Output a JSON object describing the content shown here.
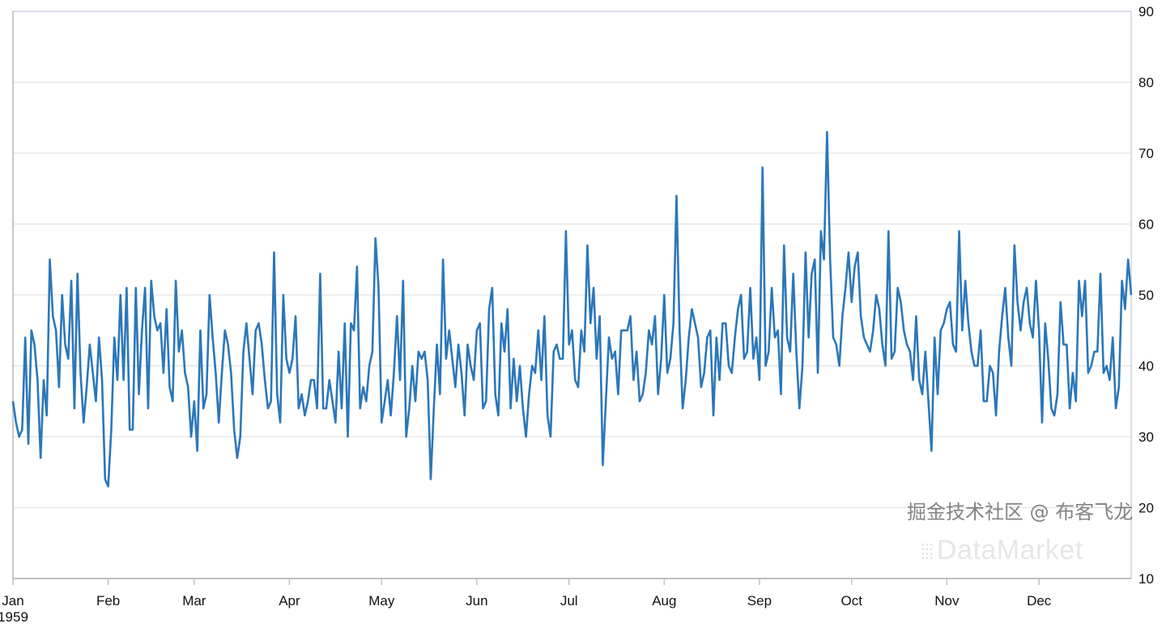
{
  "chart_data": {
    "type": "line",
    "title": "",
    "xlabel": "",
    "ylabel": "",
    "x_start": "1959-01-01",
    "x_end": "1959-12-31",
    "x_ticks": [
      {
        "date": "1959-01-01",
        "label": "Jan",
        "sublabel": "1959"
      },
      {
        "date": "1959-02-01",
        "label": "Feb"
      },
      {
        "date": "1959-03-01",
        "label": "Mar"
      },
      {
        "date": "1959-04-01",
        "label": "Apr"
      },
      {
        "date": "1959-05-01",
        "label": "May"
      },
      {
        "date": "1959-06-01",
        "label": "Jun"
      },
      {
        "date": "1959-07-01",
        "label": "Jul"
      },
      {
        "date": "1959-08-01",
        "label": "Aug"
      },
      {
        "date": "1959-09-01",
        "label": "Sep"
      },
      {
        "date": "1959-10-01",
        "label": "Oct"
      },
      {
        "date": "1959-11-01",
        "label": "Nov"
      },
      {
        "date": "1959-12-01",
        "label": "Dec"
      }
    ],
    "ylim": [
      10,
      90
    ],
    "y_ticks": [
      "10",
      "20",
      "30",
      "40",
      "50",
      "60",
      "70",
      "80",
      "90"
    ],
    "y_axis_side": "right",
    "grid": true,
    "line_color": "#2b77b9",
    "series": [
      {
        "frequency": "daily",
        "values": [
          35,
          32,
          30,
          31,
          44,
          29,
          45,
          43,
          38,
          27,
          38,
          33,
          55,
          47,
          45,
          37,
          50,
          43,
          41,
          52,
          34,
          53,
          39,
          32,
          37,
          43,
          39,
          35,
          44,
          38,
          24,
          23,
          31,
          44,
          38,
          50,
          38,
          51,
          31,
          31,
          51,
          36,
          45,
          51,
          34,
          52,
          47,
          45,
          46,
          39,
          48,
          37,
          35,
          52,
          42,
          45,
          39,
          37,
          30,
          35,
          28,
          45,
          34,
          36,
          50,
          44,
          39,
          32,
          39,
          45,
          43,
          39,
          31,
          27,
          30,
          42,
          46,
          41,
          36,
          45,
          46,
          43,
          38,
          34,
          35,
          56,
          36,
          32,
          50,
          41,
          39,
          41,
          47,
          34,
          36,
          33,
          35,
          38,
          38,
          34,
          53,
          34,
          34,
          38,
          35,
          32,
          42,
          34,
          46,
          30,
          46,
          45,
          54,
          34,
          37,
          35,
          40,
          42,
          58,
          51,
          32,
          35,
          38,
          33,
          39,
          47,
          38,
          52,
          30,
          34,
          40,
          35,
          42,
          41,
          42,
          38,
          24,
          34,
          43,
          36,
          55,
          41,
          45,
          41,
          37,
          43,
          39,
          33,
          43,
          40,
          38,
          45,
          46,
          34,
          35,
          48,
          51,
          36,
          33,
          46,
          42,
          48,
          34,
          41,
          35,
          40,
          34,
          30,
          36,
          40,
          39,
          45,
          38,
          47,
          33,
          30,
          42,
          43,
          41,
          41,
          59,
          43,
          45,
          38,
          37,
          45,
          42,
          57,
          46,
          51,
          41,
          47,
          26,
          35,
          44,
          41,
          42,
          36,
          45,
          45,
          45,
          47,
          38,
          42,
          35,
          36,
          39,
          45,
          43,
          47,
          36,
          41,
          50,
          39,
          41,
          46,
          64,
          45,
          34,
          38,
          44,
          48,
          46,
          44,
          37,
          39,
          44,
          45,
          33,
          44,
          38,
          46,
          46,
          40,
          39,
          44,
          48,
          50,
          41,
          42,
          51,
          41,
          44,
          38,
          68,
          40,
          42,
          51,
          44,
          45,
          36,
          57,
          44,
          42,
          53,
          42,
          34,
          40,
          56,
          44,
          53,
          55,
          39,
          59,
          55,
          73,
          55,
          44,
          43,
          40,
          47,
          51,
          56,
          49,
          54,
          56,
          47,
          44,
          43,
          42,
          45,
          50,
          48,
          43,
          40,
          59,
          41,
          42,
          51,
          49,
          45,
          43,
          42,
          38,
          47,
          38,
          36,
          42,
          35,
          28,
          44,
          36,
          45,
          46,
          48,
          49,
          43,
          42,
          59,
          45,
          52,
          46,
          42,
          40,
          40,
          45,
          35,
          35,
          40,
          39,
          33,
          42,
          47,
          51,
          44,
          40,
          57,
          49,
          45,
          49,
          51,
          46,
          44,
          52,
          45,
          32,
          46,
          41,
          34,
          33,
          36,
          49,
          43,
          43,
          34,
          39,
          35,
          52,
          47,
          52,
          39,
          40,
          42,
          42,
          53,
          39,
          40,
          38,
          44,
          34,
          37,
          52,
          48,
          55,
          50
        ]
      }
    ]
  },
  "watermarks": {
    "brand": "DataMarket",
    "credit": "掘金技术社区 @ 布客飞龙"
  }
}
